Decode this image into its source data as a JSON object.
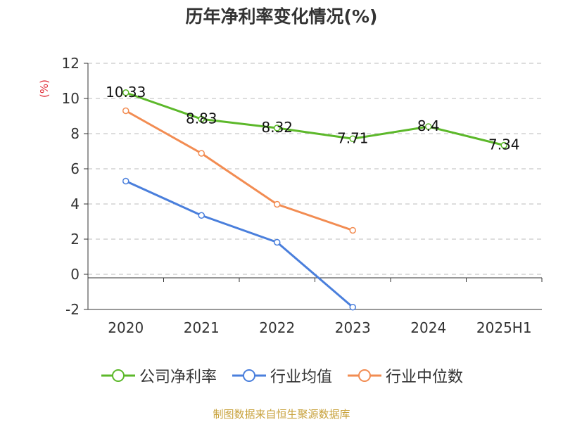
{
  "title": "历年净利率变化情况(%)",
  "source_note": "制图数据来自恒生聚源数据库",
  "colors": {
    "source_note": "#c8a23c",
    "unit_label": "#e0303a",
    "axis": "#333333",
    "grid": "#bbbbbb"
  },
  "chart_data": {
    "type": "line",
    "title": "历年净利率变化情况(%)",
    "ylabel": "(%)",
    "xlabel": "",
    "categories": [
      "2020",
      "2021",
      "2022",
      "2023",
      "2024",
      "2025H1"
    ],
    "ylim": [
      -2,
      12
    ],
    "yticks": [
      -2,
      0,
      2,
      4,
      6,
      8,
      10,
      12
    ],
    "grid": true,
    "legend_position": "bottom",
    "series": [
      {
        "name": "公司净利率",
        "color": "#5cb82a",
        "values": [
          10.33,
          8.83,
          8.32,
          7.71,
          8.4,
          7.34
        ],
        "labels": [
          "10.33",
          "8.83",
          "8.32",
          "7.71",
          "8.4",
          "7.34"
        ]
      },
      {
        "name": "行业均值",
        "color": "#4a7fdc",
        "values": [
          5.3,
          3.35,
          1.82,
          -1.87,
          null,
          null
        ]
      },
      {
        "name": "行业中位数",
        "color": "#f28c52",
        "values": [
          9.3,
          6.88,
          3.98,
          2.5,
          null,
          null
        ]
      }
    ]
  }
}
